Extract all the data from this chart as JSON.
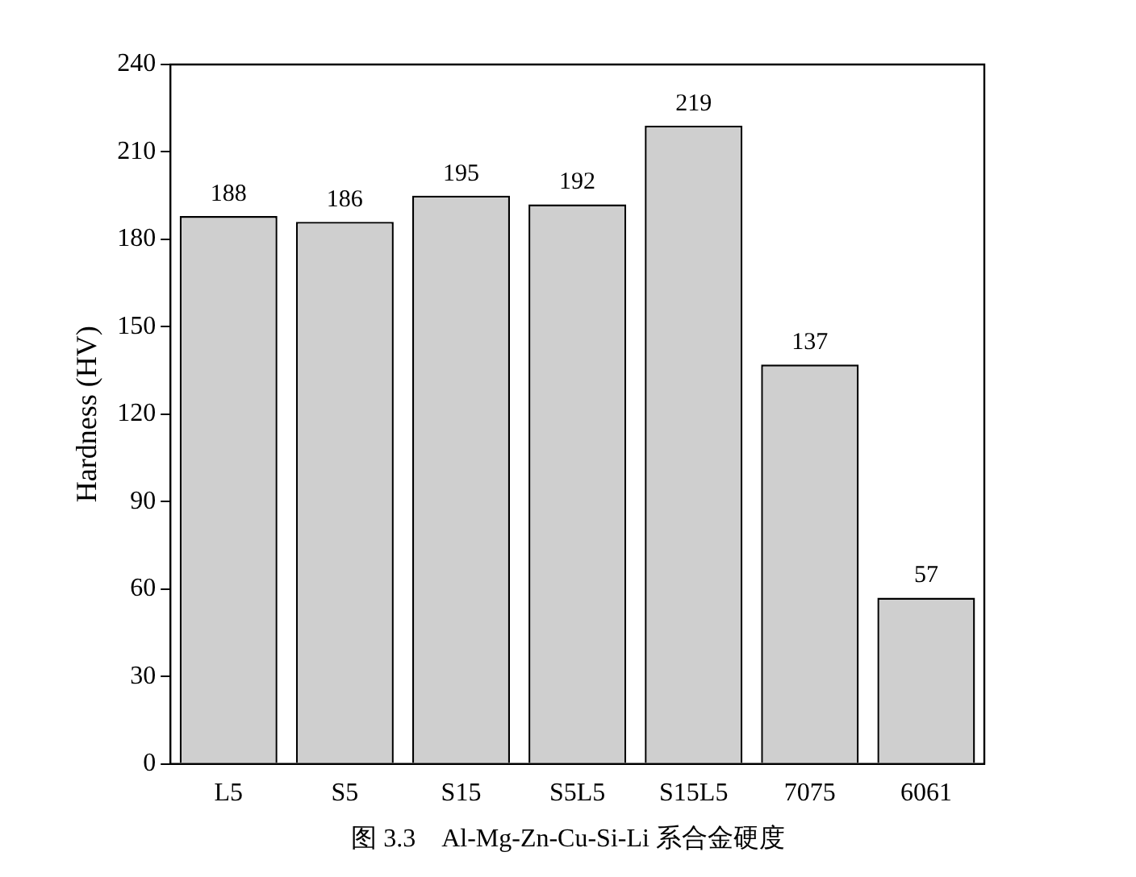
{
  "chart_data": {
    "type": "bar",
    "ylabel": "Hardness (HV)",
    "categories": [
      "L5",
      "S5",
      "S15",
      "S5L5",
      "S15L5",
      "7075",
      "6061"
    ],
    "values": [
      188,
      186,
      195,
      192,
      219,
      137,
      57
    ],
    "color": "#cfcfcf",
    "ylim": [
      0,
      240
    ],
    "yticks": [
      0,
      30,
      60,
      90,
      120,
      150,
      180,
      210,
      240
    ],
    "grid": false,
    "legend": false,
    "data_labels": true,
    "annotations": [
      "图 3.3　Al-Mg-Zn-Cu-Si-Li 系合金硬度"
    ]
  }
}
